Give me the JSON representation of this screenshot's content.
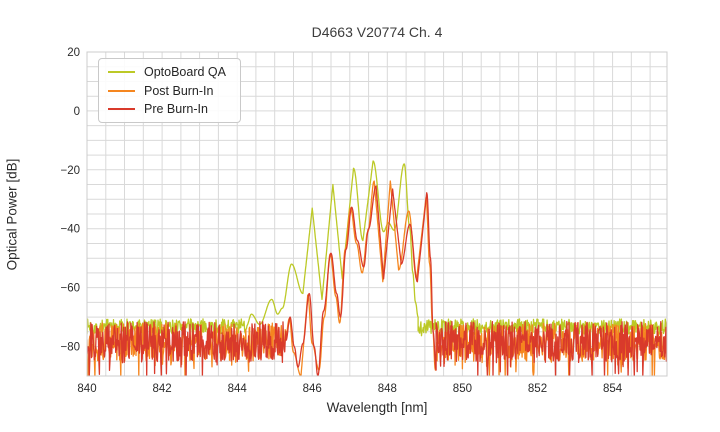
{
  "title": "D4663 V20774 Ch. 4",
  "axes": {
    "xlabel": "Wavelength [nm]",
    "ylabel": "Optical Power [dB]"
  },
  "legend": {
    "position": "upper left",
    "items": [
      {
        "label": "OptoBoard QA",
        "color": "#bcc926"
      },
      {
        "label": "Post Burn-In",
        "color": "#f5861f"
      },
      {
        "label": "Pre Burn-In",
        "color": "#d93a2b"
      }
    ]
  },
  "chart_data": {
    "type": "line",
    "title": "D4663 V20774 Ch. 4",
    "xlabel": "Wavelength [nm]",
    "ylabel": "Optical Power [dB]",
    "xlim": [
      840,
      855.45
    ],
    "ylim": [
      -90,
      20
    ],
    "x_ticks": [
      840,
      842,
      844,
      846,
      848,
      850,
      852,
      854
    ],
    "y_ticks": [
      20,
      0,
      -20,
      -40,
      -60,
      -80
    ],
    "x_minor_step": 0.5,
    "y_minor_step": 5,
    "grid": true,
    "grid_color": "#d9d9d9",
    "frame_color": "#cccccc",
    "description": "Optical spectra of VCSEL channel with multimode peak near 847.7 nm; noise floor about -73 to -86 dB outside 845.3-849.3 nm band",
    "series": [
      {
        "name": "OptoBoard QA",
        "color": "#bcc926",
        "seed": 7,
        "noise_floor_dB": -73.2,
        "noise_amp_dB": 2.6,
        "noise_spike_prob": 0.04,
        "noise_spike_dB": 4,
        "noise_ranges": [
          [
            840,
            844.25
          ],
          [
            848.82,
            855.45
          ]
        ],
        "signal_points": [
          [
            844.25,
            -73
          ],
          [
            844.38,
            -69
          ],
          [
            844.6,
            -72.5
          ],
          [
            844.92,
            -64
          ],
          [
            845.08,
            -69
          ],
          [
            845.2,
            -67
          ],
          [
            845.45,
            -52
          ],
          [
            845.75,
            -62
          ],
          [
            846.0,
            -33
          ],
          [
            846.26,
            -64
          ],
          [
            846.55,
            -25
          ],
          [
            846.8,
            -57
          ],
          [
            847.1,
            -19.5
          ],
          [
            847.35,
            -44
          ],
          [
            847.62,
            -17
          ],
          [
            847.9,
            -41
          ],
          [
            848.03,
            -38
          ],
          [
            848.18,
            -40.5
          ],
          [
            848.45,
            -18
          ],
          [
            848.6,
            -40
          ],
          [
            848.68,
            -55
          ],
          [
            848.75,
            -65
          ],
          [
            848.82,
            -70
          ]
        ]
      },
      {
        "name": "Post Burn-In",
        "color": "#f5861f",
        "seed": 13,
        "noise_floor_dB": -78.5,
        "noise_amp_dB": 6.5,
        "noise_spike_prob": 0.07,
        "noise_spike_dB": 7,
        "noise_ranges": [
          [
            840,
            845.28
          ],
          [
            849.28,
            855.45
          ]
        ],
        "signal_points": [
          [
            845.28,
            -78
          ],
          [
            845.39,
            -70.5
          ],
          [
            845.5,
            -82
          ],
          [
            845.7,
            -90
          ],
          [
            845.88,
            -62.5
          ],
          [
            846.0,
            -79
          ],
          [
            846.18,
            -88
          ],
          [
            846.32,
            -70
          ],
          [
            846.48,
            -48.5
          ],
          [
            846.63,
            -63
          ],
          [
            846.73,
            -72
          ],
          [
            846.88,
            -47
          ],
          [
            847.02,
            -33
          ],
          [
            847.18,
            -45
          ],
          [
            847.33,
            -55
          ],
          [
            847.48,
            -41
          ],
          [
            847.65,
            -23.8
          ],
          [
            847.88,
            -58
          ],
          [
            848.08,
            -23.8
          ],
          [
            848.3,
            -54
          ],
          [
            848.57,
            -34
          ],
          [
            848.78,
            -57
          ],
          [
            849.03,
            -29.5
          ],
          [
            849.13,
            -52
          ],
          [
            849.2,
            -72
          ],
          [
            849.28,
            -88
          ]
        ]
      },
      {
        "name": "Pre Burn-In",
        "color": "#d93a2b",
        "seed": 29,
        "noise_floor_dB": -78.5,
        "noise_amp_dB": 7,
        "noise_spike_prob": 0.08,
        "noise_spike_dB": 8,
        "noise_ranges": [
          [
            840,
            845.3
          ],
          [
            849.3,
            855.45
          ]
        ],
        "signal_points": [
          [
            845.3,
            -78
          ],
          [
            845.41,
            -70
          ],
          [
            845.52,
            -80
          ],
          [
            845.62,
            -87
          ],
          [
            845.75,
            -79
          ],
          [
            845.92,
            -62
          ],
          [
            846.05,
            -80
          ],
          [
            846.15,
            -90
          ],
          [
            846.3,
            -68
          ],
          [
            846.5,
            -48.3
          ],
          [
            846.65,
            -62
          ],
          [
            846.75,
            -70
          ],
          [
            846.9,
            -47
          ],
          [
            847.05,
            -32.7
          ],
          [
            847.2,
            -44
          ],
          [
            847.37,
            -53
          ],
          [
            847.5,
            -40
          ],
          [
            847.7,
            -25.5
          ],
          [
            847.9,
            -57
          ],
          [
            848.14,
            -26.5
          ],
          [
            848.37,
            -52
          ],
          [
            848.6,
            -38.5
          ],
          [
            848.8,
            -58
          ],
          [
            849.05,
            -27.8
          ],
          [
            849.15,
            -50
          ],
          [
            849.22,
            -75
          ],
          [
            849.3,
            -88
          ]
        ]
      }
    ]
  }
}
